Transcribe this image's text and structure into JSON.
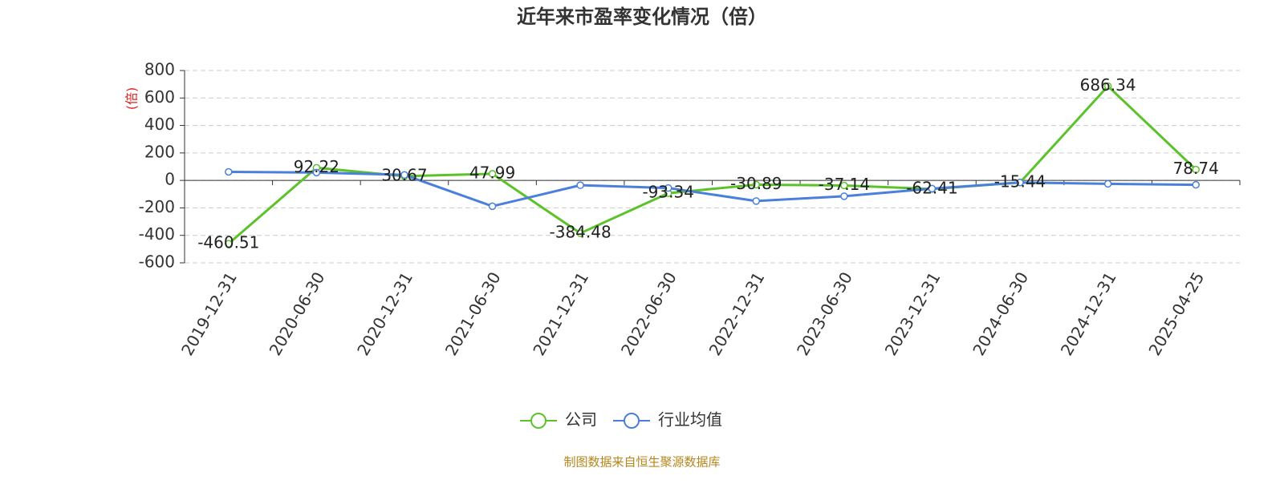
{
  "chart_data": {
    "type": "line",
    "title": "近年来市盈率变化情况（倍）",
    "y_label": "(倍)",
    "categories": [
      "2019-12-31",
      "2020-06-30",
      "2020-12-31",
      "2021-06-30",
      "2021-12-31",
      "2022-06-30",
      "2022-12-31",
      "2023-06-30",
      "2023-12-31",
      "2024-06-30",
      "2024-12-31",
      "2025-04-25"
    ],
    "series": [
      {
        "name": "公司",
        "color": "#5cc22a",
        "values": [
          -460.51,
          92.22,
          30.67,
          47.99,
          -384.48,
          -93.34,
          -30.89,
          -37.14,
          -62.41,
          -15.44,
          686.34,
          78.74
        ],
        "show_labels": true
      },
      {
        "name": "行业均值",
        "color": "#4a7fdc",
        "values": [
          62,
          57,
          40,
          -188,
          -35,
          -55,
          -150,
          -115,
          -60,
          -15,
          -25,
          -32
        ],
        "show_labels": false
      }
    ],
    "ylim": [
      -600,
      800
    ],
    "yticks": [
      -600,
      -400,
      -200,
      0,
      200,
      400,
      600,
      800
    ],
    "grid": true,
    "source": "制图数据来自恒生聚源数据库"
  }
}
